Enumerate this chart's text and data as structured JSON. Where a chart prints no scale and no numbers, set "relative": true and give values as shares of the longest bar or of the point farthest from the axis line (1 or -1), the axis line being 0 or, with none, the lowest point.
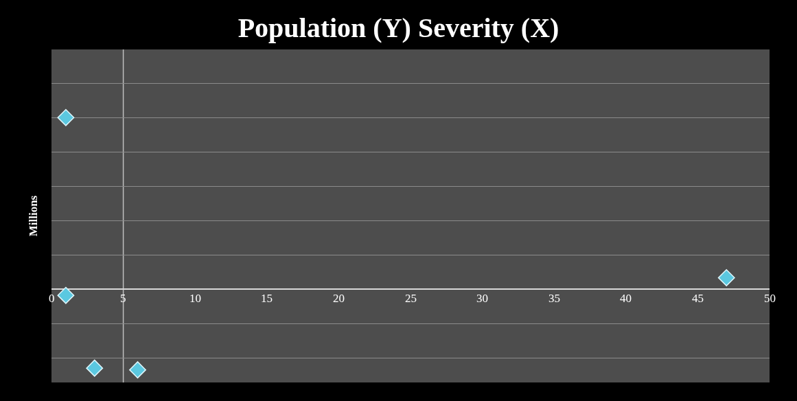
{
  "chart_data": {
    "type": "scatter",
    "title": "Population (Y) Severity (X)",
    "ylabel": "Millions",
    "relative": true,
    "x": [
      1,
      1,
      3,
      6,
      47
    ],
    "series": [
      {
        "color": "#5bc8e0",
        "values": [
          1,
          -0.036,
          -0.46,
          -0.47,
          0.067
        ]
      }
    ],
    "xlim": [
      0,
      50
    ],
    "xticks": [
      0,
      5,
      10,
      15,
      20,
      25,
      30,
      35,
      40,
      45,
      50
    ],
    "ref_lines": [
      {
        "axis": "x",
        "value": 5,
        "color": "#bfbfbf"
      }
    ],
    "grid": "y",
    "marker": "diamond"
  }
}
